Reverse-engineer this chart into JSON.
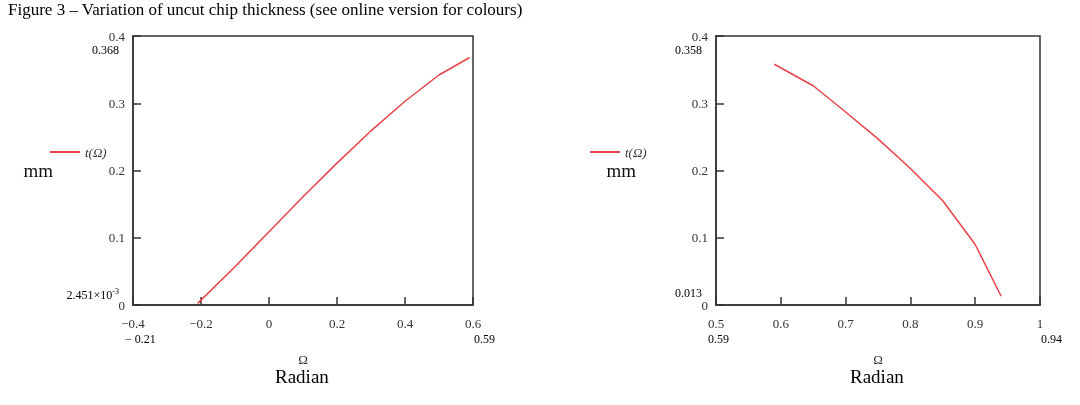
{
  "chart_data": [
    {
      "type": "line",
      "title": "Figure 3 – Variation of uncut chip thickness (see online version for colours)",
      "xlabel": "Ω",
      "ylabel": "mm",
      "annotations": [
        "0.368",
        "2.451×10$^{-3}$",
        "− 0.21",
        "0.59",
        "Radian"
      ],
      "series": [
        {
          "name": "t(Ω)",
          "color": "#e8434a",
          "x": [
            -0.21,
            -0.1,
            0,
            0.1,
            0.2,
            0.3,
            0.4,
            0.5,
            0.59
          ],
          "values": [
            0.002451,
            0.057,
            0.109,
            0.161,
            0.211,
            0.259,
            0.303,
            0.342,
            0.368
          ]
        }
      ],
      "xlim": [
        -0.4,
        0.6
      ],
      "xticks": [
        -0.4,
        -0.2,
        0,
        0.2,
        0.4,
        0.6
      ],
      "ylim": [
        0,
        0.4
      ],
      "yticks": [
        0,
        0.1,
        0.2,
        0.3,
        0.4
      ],
      "legend": "left",
      "marker": "none",
      "line_style": "solid",
      "grid": false
    },
    {
      "type": "line",
      "xlabel": "Ω",
      "ylabel": "mm",
      "annotations": [
        "0.358",
        "0.013",
        "0.59",
        "0.94",
        "Radian"
      ],
      "series": [
        {
          "name": "t(Ω)",
          "color": "#e8434a",
          "x": [
            0.59,
            0.65,
            0.7,
            0.75,
            0.8,
            0.85,
            0.9,
            0.94
          ],
          "values": [
            0.358,
            0.326,
            0.287,
            0.247,
            0.203,
            0.155,
            0.09,
            0.013
          ]
        }
      ],
      "xlim": [
        0.5,
        1
      ],
      "xticks": [
        0.5,
        0.6,
        0.7,
        0.8,
        0.9,
        1
      ],
      "ylim": [
        0,
        0.4
      ],
      "yticks": [
        0,
        0.1,
        0.2,
        0.3,
        0.4
      ],
      "legend": "left",
      "marker": "none",
      "line_style": "solid",
      "grid": false
    }
  ]
}
